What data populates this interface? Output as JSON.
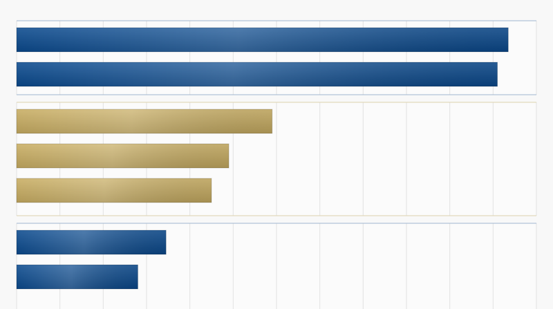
{
  "chart_data": [
    {
      "type": "hbar",
      "categories": [
        null,
        null
      ],
      "values": [
        11.35,
        11.1
      ],
      "color": "#0b4a8e",
      "xlim": [
        0,
        12
      ],
      "xticks": [
        0,
        1,
        2,
        3,
        4,
        5,
        6,
        7,
        8,
        9,
        10,
        11,
        12
      ],
      "grid": true
    },
    {
      "type": "hbar",
      "categories": [
        null,
        null,
        null
      ],
      "values": [
        5.9,
        4.9,
        4.5
      ],
      "color": "#c8ad62",
      "xlim": [
        0,
        12
      ],
      "xticks": [
        0,
        1,
        2,
        3,
        4,
        5,
        6,
        7,
        8,
        9,
        10,
        11,
        12
      ],
      "grid": true
    },
    {
      "type": "hbar",
      "categories": [
        null,
        null
      ],
      "values": [
        3.45,
        2.8
      ],
      "color": "#0b4a8e",
      "xlim": [
        0,
        12
      ],
      "xticks": [
        0,
        1,
        2,
        3,
        4,
        5,
        6,
        7,
        8,
        9,
        10,
        11,
        12
      ],
      "grid": true
    }
  ]
}
